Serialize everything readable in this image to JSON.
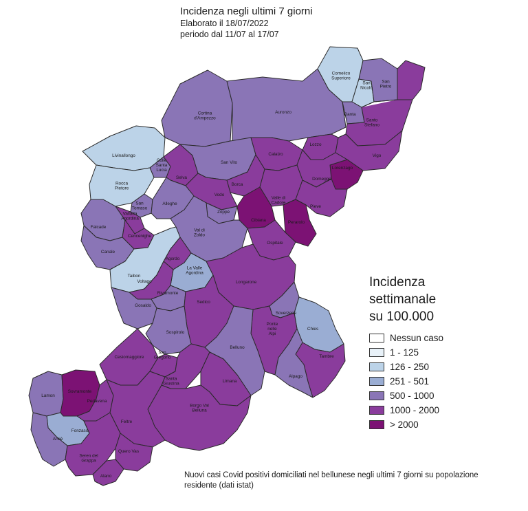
{
  "header": {
    "title": "Incidenza negli ultimi 7 giorni",
    "line1": "Elaborato il 18/07/2022",
    "line2": "periodo dal 11/07 al 17/07"
  },
  "legend": {
    "title_lines": [
      "Incidenza",
      "settimanale",
      "su 100.000"
    ],
    "classes": [
      {
        "label": "Nessun caso",
        "color": "#ffffff"
      },
      {
        "label": "1 - 125",
        "color": "#e8f1f8"
      },
      {
        "label": "126 - 250",
        "color": "#bcd3e8"
      },
      {
        "label": "251 - 501",
        "color": "#9aadd3"
      },
      {
        "label": "500 - 1000",
        "color": "#8a75b6"
      },
      {
        "label": "1000 - 2000",
        "color": "#8a3c9c"
      },
      {
        "label": "> 2000",
        "color": "#7c1274"
      }
    ]
  },
  "footer": {
    "note": "Nuovi casi Covid positivi domiciliati nel bellunese negli ultimi 7 giorni su popolazione residente (dati istat)"
  },
  "map": {
    "municipalities": [
      {
        "name": "Cortina d'Ampezzo",
        "class": 4
      },
      {
        "name": "Auronzo",
        "class": 4
      },
      {
        "name": "Comelico Superiore",
        "class": 2
      },
      {
        "name": "San Nicolò",
        "class": 2
      },
      {
        "name": "San Pietro",
        "class": 4
      },
      {
        "name": "Danta",
        "class": 4
      },
      {
        "name": "Santo Stefano",
        "class": 5
      },
      {
        "name": "Lozzo",
        "class": 5
      },
      {
        "name": "Vigo",
        "class": 5
      },
      {
        "name": "Lorenzago",
        "class": 6
      },
      {
        "name": "Livinallongo",
        "class": 2
      },
      {
        "name": "Colle Santa Lucia",
        "class": 4
      },
      {
        "name": "Selva",
        "class": 5
      },
      {
        "name": "San Vito",
        "class": 4
      },
      {
        "name": "Calalzo",
        "class": 5
      },
      {
        "name": "Domegge",
        "class": 5
      },
      {
        "name": "Rocca Pietore",
        "class": 2
      },
      {
        "name": "San Tomaso",
        "class": 4
      },
      {
        "name": "Borca",
        "class": 5
      },
      {
        "name": "Vodo",
        "class": 5
      },
      {
        "name": "Valle di Cadore",
        "class": 5
      },
      {
        "name": "Pieve",
        "class": 5
      },
      {
        "name": "Alleghe",
        "class": 4
      },
      {
        "name": "Falcade",
        "class": 4
      },
      {
        "name": "Vallada Agordina",
        "class": 5
      },
      {
        "name": "Cencenighe",
        "class": 5
      },
      {
        "name": "Zoppè",
        "class": 4
      },
      {
        "name": "Cibiana",
        "class": 6
      },
      {
        "name": "Perarolo",
        "class": 6
      },
      {
        "name": "Val di Zoldo",
        "class": 4
      },
      {
        "name": "Ospitale",
        "class": 5
      },
      {
        "name": "Canale",
        "class": 4
      },
      {
        "name": "Taibon",
        "class": 2
      },
      {
        "name": "Agordo",
        "class": 5
      },
      {
        "name": "La Valle Agordina",
        "class": 3
      },
      {
        "name": "Longarone",
        "class": 5
      },
      {
        "name": "Voltago",
        "class": 5
      },
      {
        "name": "Rivamonte",
        "class": 4
      },
      {
        "name": "Gosaldo",
        "class": 4
      },
      {
        "name": "Sedico",
        "class": 5
      },
      {
        "name": "Soverzene",
        "class": 4
      },
      {
        "name": "Chies",
        "class": 3
      },
      {
        "name": "Sospirolo",
        "class": 4
      },
      {
        "name": "Ponte nelle Alpi",
        "class": 5
      },
      {
        "name": "Belluno",
        "class": 4
      },
      {
        "name": "Tambre",
        "class": 5
      },
      {
        "name": "Cesiomaggiore",
        "class": 5
      },
      {
        "name": "San Gregorio",
        "class": 5
      },
      {
        "name": "Santa Giustina",
        "class": 5
      },
      {
        "name": "Alpago",
        "class": 4
      },
      {
        "name": "Limana",
        "class": 5
      },
      {
        "name": "Lamon",
        "class": 4
      },
      {
        "name": "Sovramonte",
        "class": 6
      },
      {
        "name": "Pedavena",
        "class": 5
      },
      {
        "name": "Borgo Val Belluna",
        "class": 5
      },
      {
        "name": "Fonzaso",
        "class": 3
      },
      {
        "name": "Feltre",
        "class": 5
      },
      {
        "name": "Arsiè",
        "class": 4
      },
      {
        "name": "Seren del Grappa",
        "class": 5
      },
      {
        "name": "Quero Vas",
        "class": 5
      },
      {
        "name": "Alano",
        "class": 5
      }
    ]
  }
}
